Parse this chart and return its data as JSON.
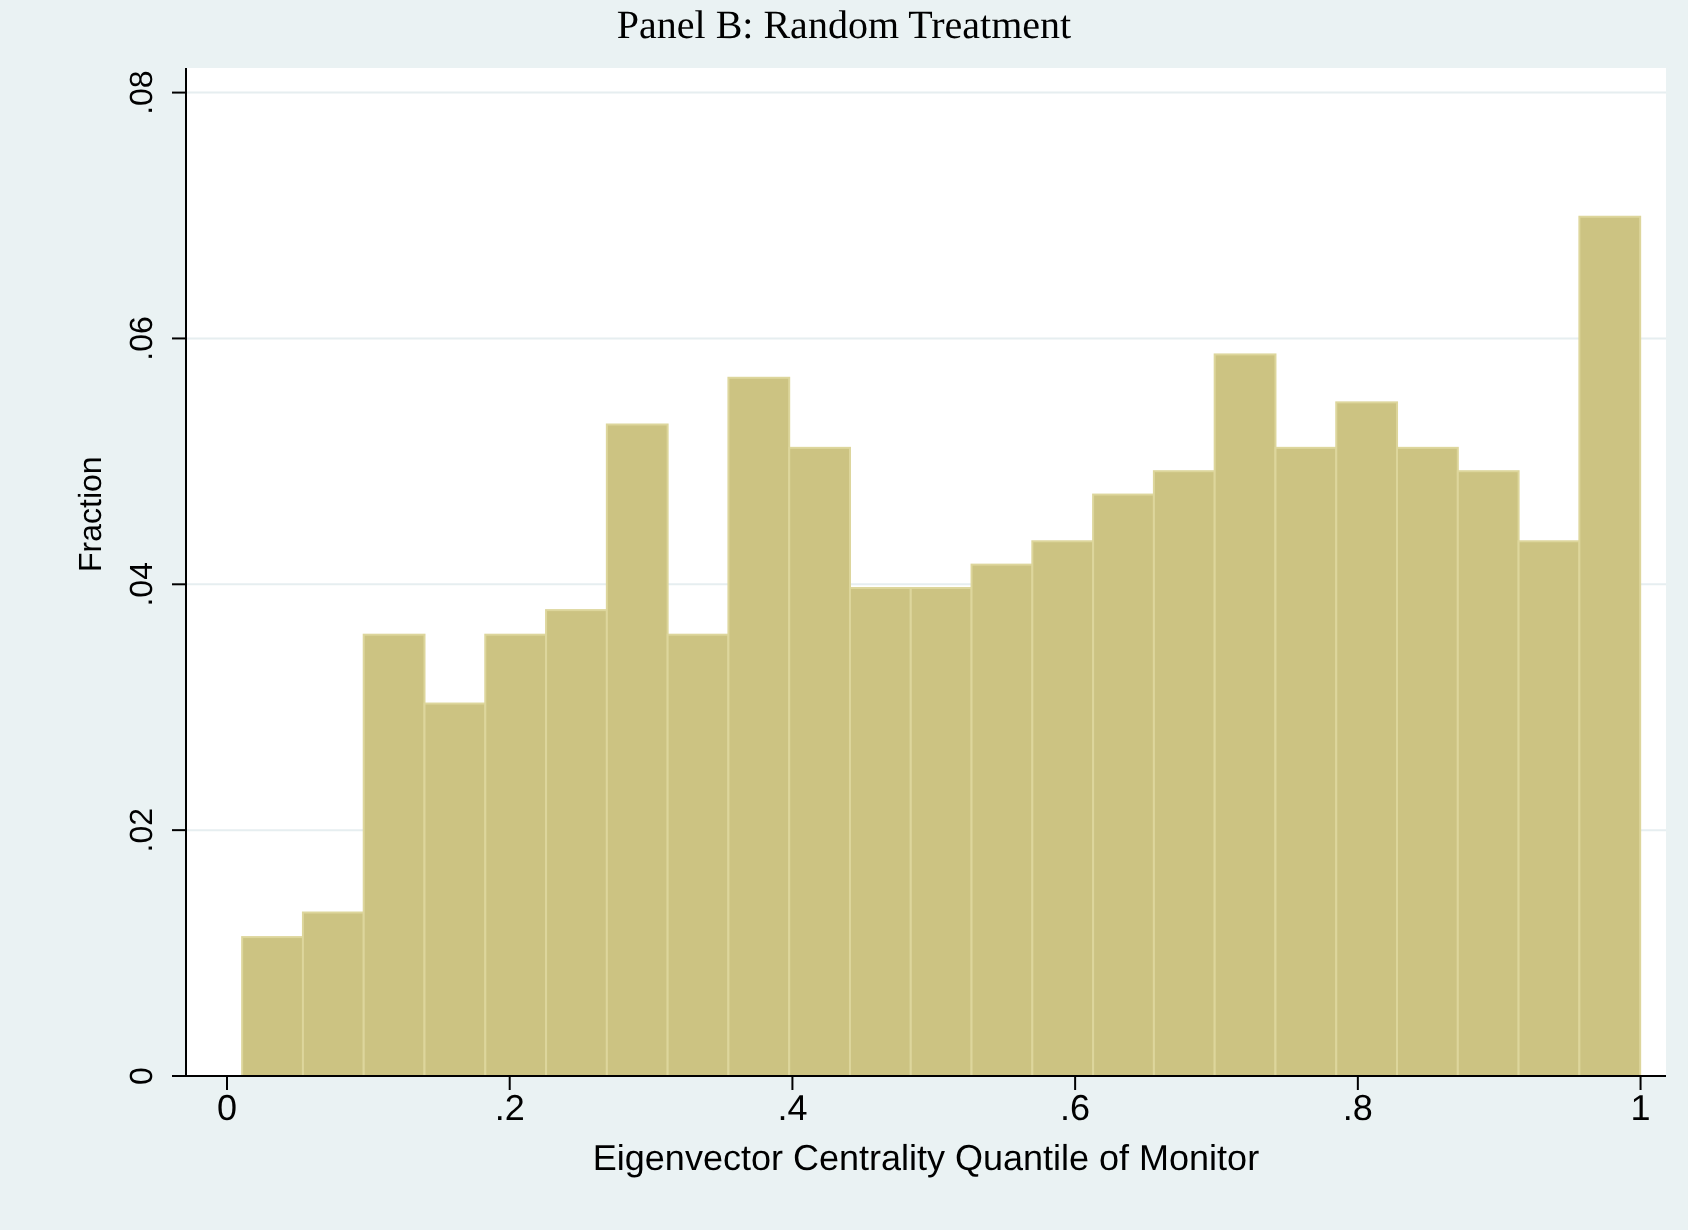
{
  "chart_data": {
    "type": "histogram",
    "title": "Panel B: Random Treatment",
    "xlabel": "Eigenvector Centrality Quantile of Monitor",
    "ylabel": "Fraction",
    "bins": [
      0.011,
      0.054,
      0.097,
      0.14,
      0.183,
      0.226,
      0.269,
      0.312,
      0.355,
      0.398,
      0.441,
      0.484,
      0.527,
      0.57,
      0.613,
      0.656,
      0.699,
      0.742,
      0.785,
      0.828,
      0.871,
      0.914,
      0.957,
      1.0
    ],
    "values": [
      0.0113,
      0.0133,
      0.0359,
      0.0303,
      0.0359,
      0.0379,
      0.053,
      0.0359,
      0.0568,
      0.0511,
      0.0397,
      0.0397,
      0.0416,
      0.0435,
      0.0473,
      0.0492,
      0.0587,
      0.0511,
      0.0548,
      0.0511,
      0.0492,
      0.0435,
      0.0699
    ],
    "color": "#ccc382",
    "xlim": [
      -0.029,
      1.018
    ],
    "xticks": [
      {
        "value": 0,
        "label": "0"
      },
      {
        "value": 0.2,
        "label": ".2"
      },
      {
        "value": 0.4,
        "label": ".4"
      },
      {
        "value": 0.6,
        "label": ".6"
      },
      {
        "value": 0.8,
        "label": ".8"
      },
      {
        "value": 1,
        "label": "1"
      }
    ],
    "ylim": [
      0,
      0.082
    ],
    "yticks": [
      {
        "value": 0,
        "label": "0"
      },
      {
        "value": 0.02,
        "label": ".02"
      },
      {
        "value": 0.04,
        "label": ".04"
      },
      {
        "value": 0.06,
        "label": ".06"
      },
      {
        "value": 0.08,
        "label": ".08"
      }
    ],
    "grid": "y"
  }
}
